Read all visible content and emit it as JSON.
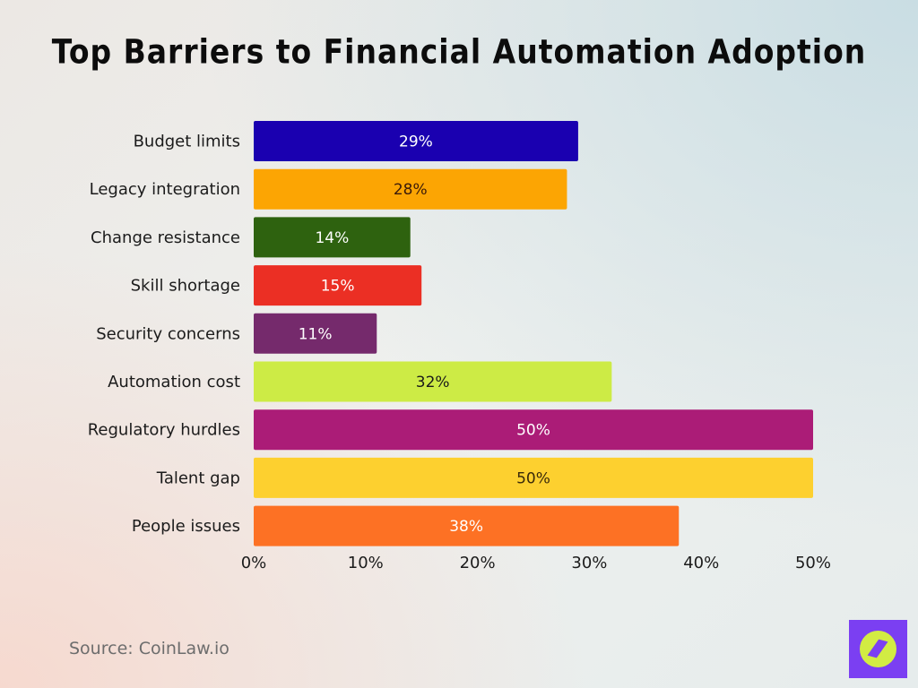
{
  "chart_data": {
    "type": "bar",
    "orientation": "horizontal",
    "title": "Top Barriers to Financial Automation Adoption",
    "categories": [
      "Budget limits",
      "Legacy integration",
      "Change resistance",
      "Skill shortage",
      "Security concerns",
      "Automation cost",
      "Regulatory hurdles",
      "Talent gap",
      "People issues"
    ],
    "values": [
      29,
      28,
      14,
      15,
      11,
      32,
      50,
      50,
      38
    ],
    "data_labels": [
      "29%",
      "28%",
      "14%",
      "15%",
      "11%",
      "32%",
      "50%",
      "50%",
      "38%"
    ],
    "colors": [
      "#1a00b0",
      "#fca503",
      "#2e620f",
      "#eb2f24",
      "#752a6c",
      "#cdeb45",
      "#ab1c77",
      "#fdd02f",
      "#fd7124"
    ],
    "label_colors": [
      "#ffffff",
      "#3a1a0a",
      "#ffffff",
      "#ffffff",
      "#ffffff",
      "#1a1a1a",
      "#ffffff",
      "#3a2a0a",
      "#ffffff"
    ],
    "xlim": [
      0,
      50
    ],
    "xticks": [
      "0%",
      "10%",
      "20%",
      "30%",
      "40%",
      "50%"
    ],
    "grid": false,
    "xlabel": "",
    "ylabel": ""
  },
  "source": "Source: CoinLaw.io",
  "logo": "compass-logo"
}
